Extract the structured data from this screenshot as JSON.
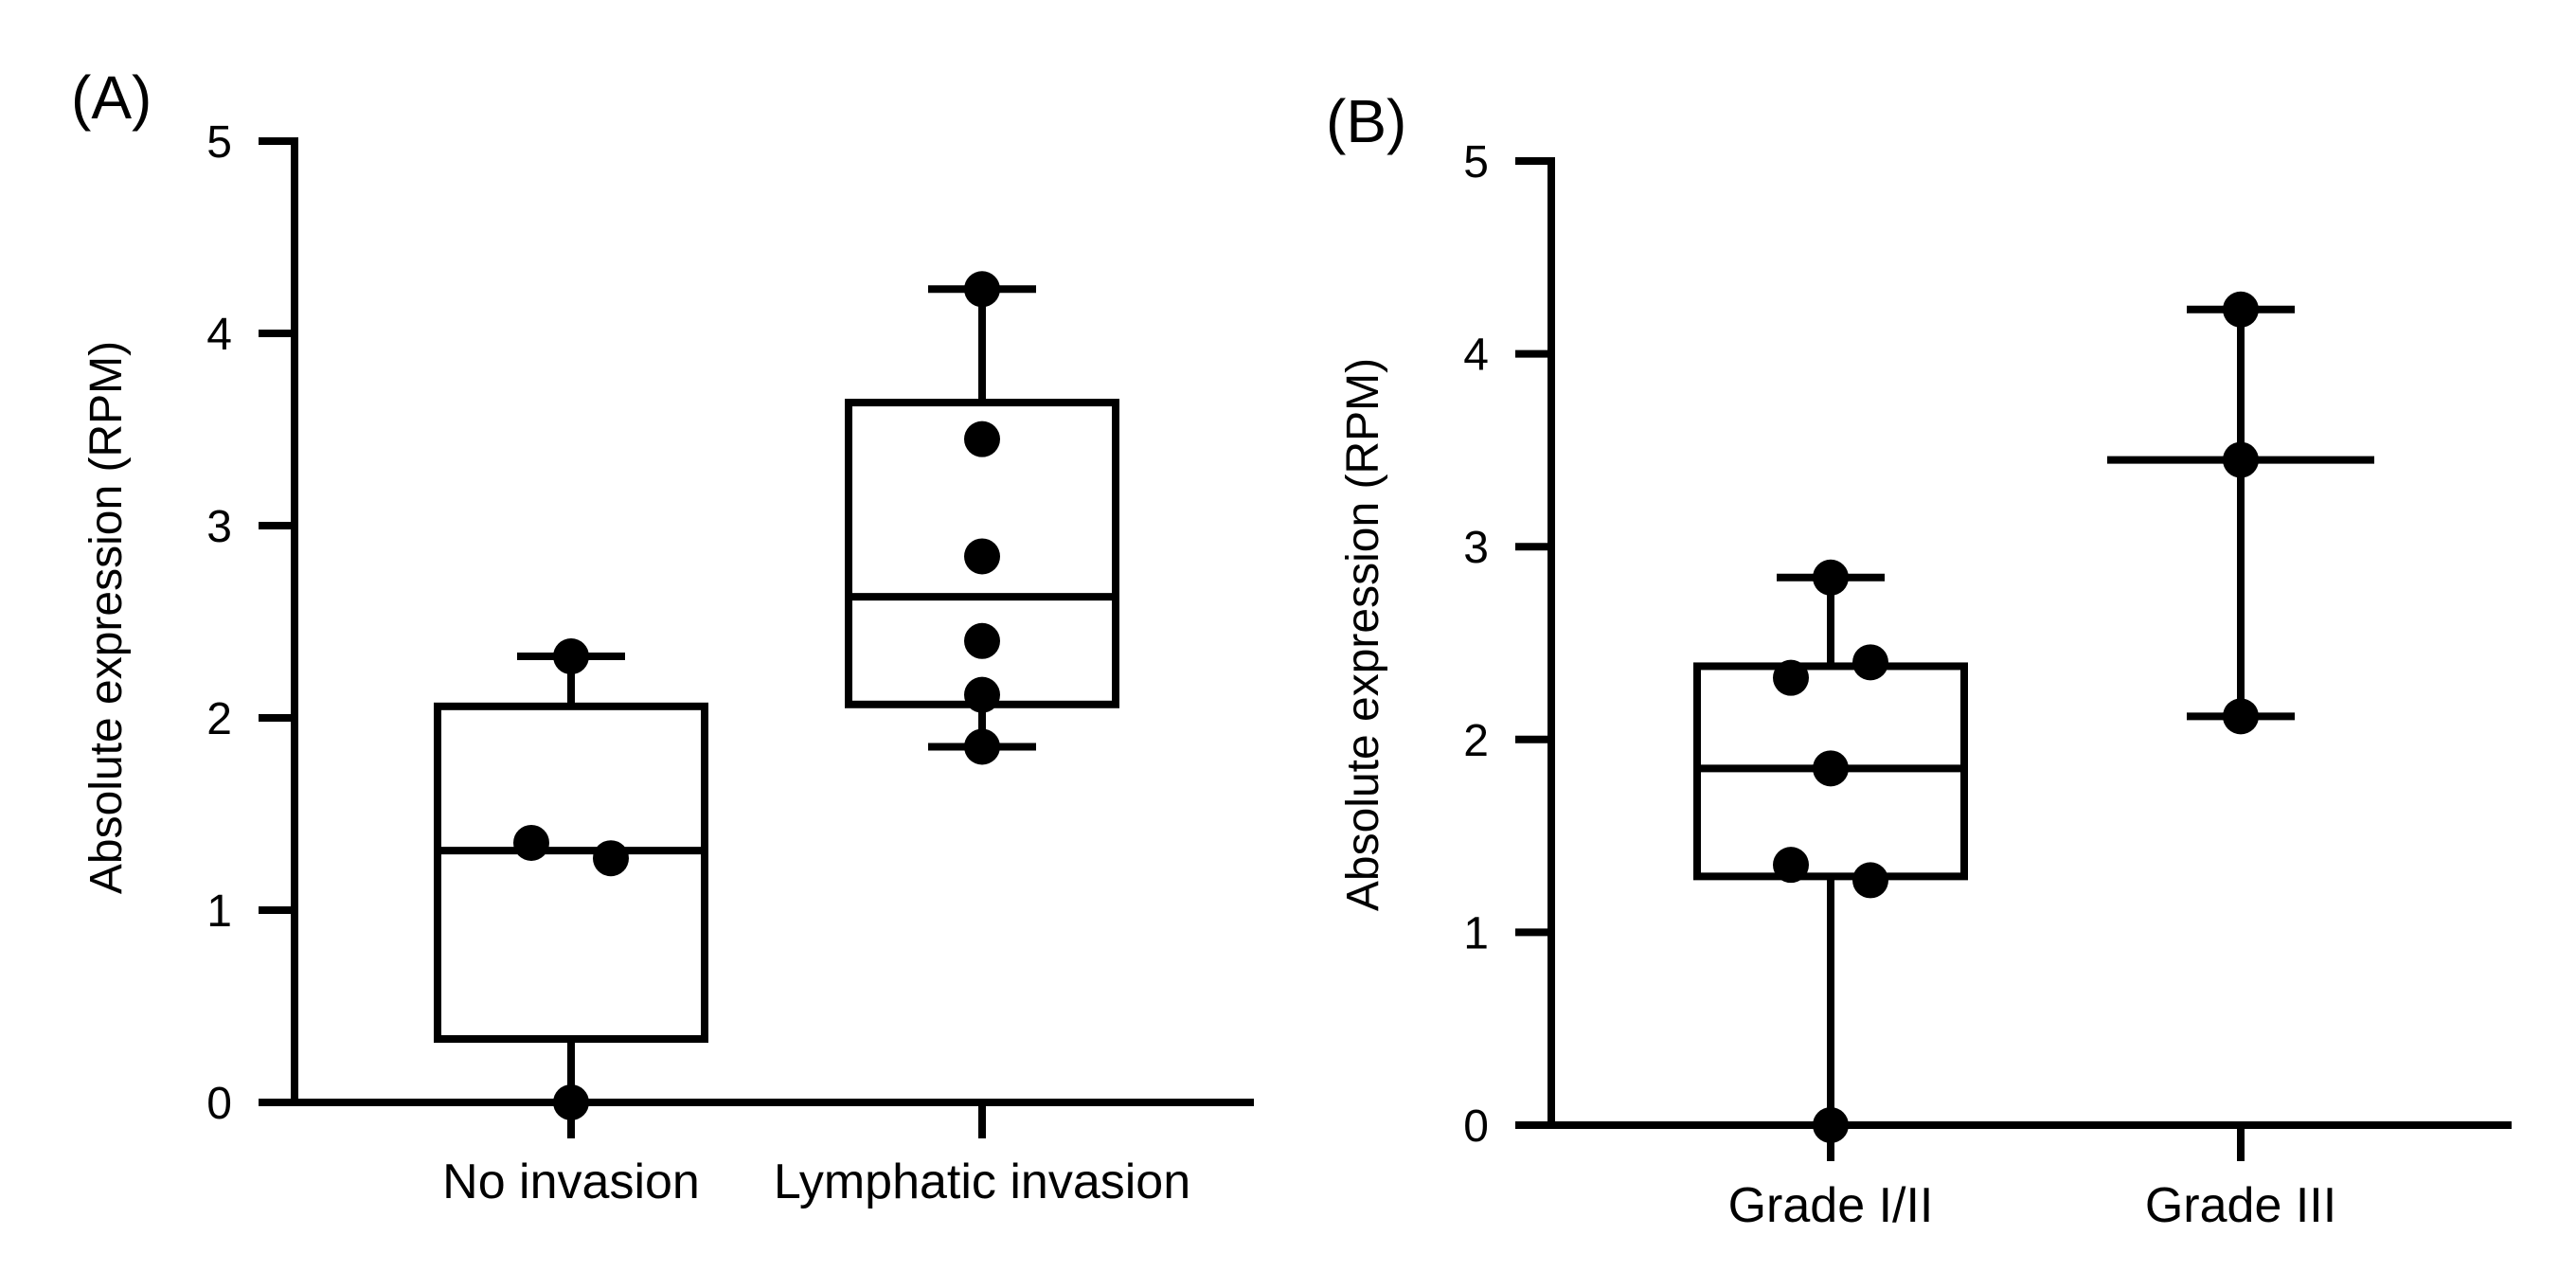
{
  "chart_data": [
    {
      "panel_label": "(A)",
      "type": "box",
      "ylabel": "Absolute expression (RPM)",
      "xlabel": "",
      "ylim": [
        0,
        5
      ],
      "yticks": [
        "0",
        "1",
        "2",
        "3",
        "4",
        "5"
      ],
      "categories": [
        "No invasion",
        "Lymphatic invasion"
      ],
      "groups": [
        {
          "name": "No invasion",
          "min": 0,
          "q1": 0.33,
          "median": 1.31,
          "q3": 2.06,
          "max": 2.32,
          "points": [
            0,
            1.35,
            1.27,
            2.32
          ]
        },
        {
          "name": "Lymphatic invasion",
          "min": 1.85,
          "q1": 2.07,
          "median": 2.63,
          "q3": 3.64,
          "max": 4.23,
          "points": [
            1.85,
            2.12,
            2.4,
            2.84,
            3.45,
            4.23
          ]
        }
      ]
    },
    {
      "panel_label": "(B)",
      "type": "box",
      "ylabel": "Absolute expression (RPM)",
      "xlabel": "",
      "ylim": [
        0,
        5
      ],
      "yticks": [
        "0",
        "1",
        "2",
        "3",
        "4",
        "5"
      ],
      "categories": [
        "Grade I/II",
        "Grade III"
      ],
      "groups": [
        {
          "name": "Grade I/II",
          "min": 0,
          "q1": 1.29,
          "median": 1.85,
          "q3": 2.38,
          "max": 2.84,
          "points": [
            0,
            1.35,
            1.27,
            1.85,
            2.32,
            2.4,
            2.84
          ]
        },
        {
          "name": "Grade III",
          "min": 2.12,
          "q1": 3.45,
          "median": 3.45,
          "q3": 3.45,
          "max": 4.23,
          "points": [
            2.12,
            3.45,
            4.23
          ]
        }
      ]
    }
  ]
}
